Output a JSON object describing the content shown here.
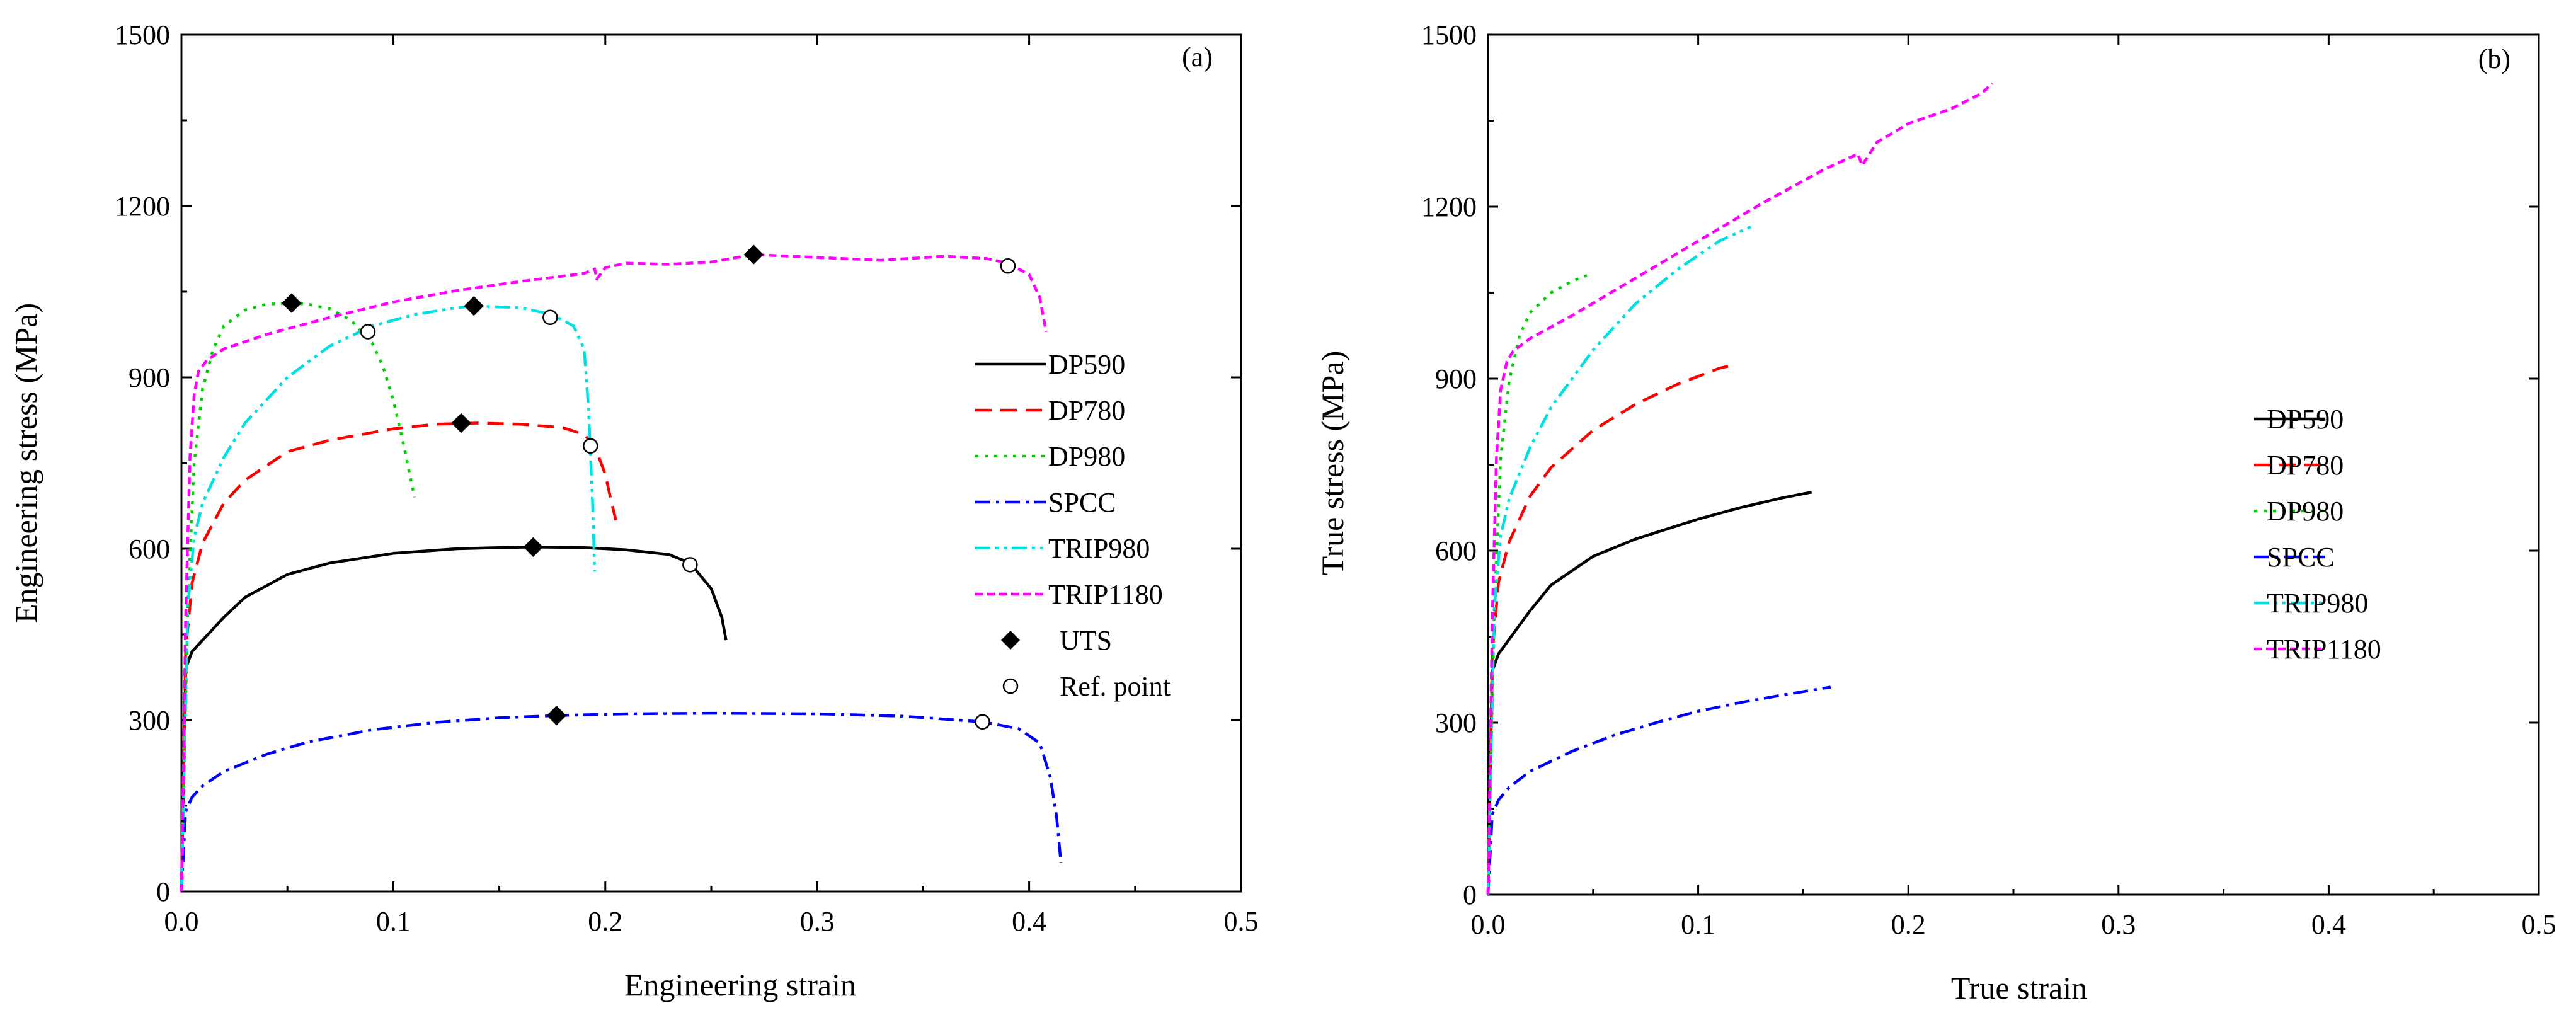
{
  "chart_data": [
    {
      "type": "line",
      "panel_label": "(a)",
      "xlabel": "Engineering strain",
      "ylabel": "Engineering stress (MPa)",
      "xlim": [
        0.0,
        0.5
      ],
      "ylim": [
        0,
        1500
      ],
      "xticks": [
        0.0,
        0.1,
        0.2,
        0.3,
        0.4,
        0.5
      ],
      "xtick_labels": [
        "0.0",
        "0.1",
        "0.2",
        "0.3",
        "0.4",
        "0.5"
      ],
      "yticks": [
        0,
        300,
        600,
        900,
        1200,
        1500
      ],
      "ytick_labels": [
        "0",
        "300",
        "600",
        "900",
        "1200",
        "1500"
      ],
      "legend_position": "right",
      "legend": [
        "DP590",
        "DP780",
        "DP980",
        "SPCC",
        "TRIP980",
        "TRIP1180",
        "UTS",
        "Ref. point"
      ],
      "series": [
        {
          "name": "DP590",
          "color": "#000000",
          "dash": "solid",
          "x": [
            0,
            0.002,
            0.005,
            0.01,
            0.02,
            0.03,
            0.05,
            0.07,
            0.1,
            0.13,
            0.15,
            0.166,
            0.19,
            0.21,
            0.23,
            0.24,
            0.25,
            0.255,
            0.257
          ],
          "y": [
            0,
            390,
            420,
            440,
            480,
            515,
            555,
            575,
            592,
            600,
            602,
            603,
            602,
            598,
            590,
            575,
            530,
            480,
            440
          ]
        },
        {
          "name": "DP780",
          "color": "#ff0000",
          "dash": "dashed",
          "x": [
            0,
            0.002,
            0.005,
            0.01,
            0.02,
            0.03,
            0.05,
            0.07,
            0.1,
            0.12,
            0.14,
            0.16,
            0.18,
            0.19,
            0.195,
            0.2,
            0.203,
            0.205
          ],
          "y": [
            0,
            420,
            540,
            610,
            680,
            720,
            770,
            790,
            810,
            818,
            820,
            818,
            812,
            800,
            780,
            730,
            680,
            650
          ]
        },
        {
          "name": "DP980",
          "color": "#00d000",
          "dash": "dotted",
          "x": [
            0,
            0.003,
            0.006,
            0.01,
            0.015,
            0.02,
            0.03,
            0.04,
            0.052,
            0.06,
            0.07,
            0.08,
            0.09,
            0.095,
            0.1,
            0.105,
            0.11
          ],
          "y": [
            0,
            500,
            750,
            880,
            950,
            990,
            1018,
            1028,
            1030,
            1028,
            1020,
            1000,
            960,
            920,
            860,
            780,
            690
          ]
        },
        {
          "name": "SPCC",
          "color": "#0000ff",
          "dash": "dashdot",
          "x": [
            0,
            0.002,
            0.005,
            0.01,
            0.02,
            0.04,
            0.06,
            0.09,
            0.12,
            0.15,
            0.177,
            0.21,
            0.25,
            0.3,
            0.34,
            0.378,
            0.395,
            0.405,
            0.41,
            0.413,
            0.415
          ],
          "y": [
            0,
            140,
            165,
            185,
            210,
            240,
            262,
            283,
            296,
            304,
            308,
            311,
            312,
            311,
            307,
            297,
            285,
            260,
            200,
            130,
            50
          ]
        },
        {
          "name": "TRIP980",
          "color": "#00e0e0",
          "dash": "dashdotdot",
          "x": [
            0,
            0.003,
            0.006,
            0.01,
            0.02,
            0.03,
            0.05,
            0.07,
            0.09,
            0.11,
            0.13,
            0.138,
            0.16,
            0.175,
            0.185,
            0.19,
            0.192,
            0.194,
            0.195
          ],
          "y": [
            0,
            500,
            620,
            680,
            760,
            820,
            900,
            955,
            990,
            1010,
            1022,
            1025,
            1022,
            1010,
            990,
            950,
            850,
            680,
            560
          ]
        },
        {
          "name": "TRIP1180",
          "color": "#ff00ff",
          "dash": "shortdash",
          "x": [
            0,
            0.002,
            0.004,
            0.006,
            0.008,
            0.012,
            0.02,
            0.04,
            0.07,
            0.1,
            0.13,
            0.16,
            0.19,
            0.195,
            0.196,
            0.2,
            0.21,
            0.23,
            0.25,
            0.27,
            0.3,
            0.33,
            0.36,
            0.38,
            0.39,
            0.4,
            0.405,
            0.408
          ],
          "y": [
            0,
            480,
            760,
            870,
            910,
            930,
            950,
            975,
            1005,
            1032,
            1052,
            1068,
            1082,
            1090,
            1072,
            1092,
            1100,
            1098,
            1102,
            1115,
            1110,
            1105,
            1112,
            1108,
            1100,
            1080,
            1040,
            980
          ]
        }
      ],
      "markers": [
        {
          "name": "UTS",
          "symbol": "filled-diamond",
          "points": [
            {
              "series": "DP980",
              "x": 0.052,
              "y": 1030
            },
            {
              "series": "TRIP980",
              "x": 0.138,
              "y": 1025
            },
            {
              "series": "TRIP1180",
              "x": 0.27,
              "y": 1115
            },
            {
              "series": "DP780",
              "x": 0.132,
              "y": 820
            },
            {
              "series": "DP590",
              "x": 0.166,
              "y": 603
            },
            {
              "series": "SPCC",
              "x": 0.177,
              "y": 308
            }
          ]
        },
        {
          "name": "Ref. point",
          "symbol": "open-circle",
          "points": [
            {
              "series": "TRIP1180",
              "x": 0.39,
              "y": 1095
            },
            {
              "series": "DP980",
              "x": 0.088,
              "y": 980
            },
            {
              "series": "TRIP980",
              "x": 0.174,
              "y": 1005
            },
            {
              "series": "DP780",
              "x": 0.193,
              "y": 780
            },
            {
              "series": "DP590",
              "x": 0.24,
              "y": 572
            },
            {
              "series": "SPCC",
              "x": 0.378,
              "y": 297
            }
          ]
        }
      ]
    },
    {
      "type": "line",
      "panel_label": "(b)",
      "xlabel": "True strain",
      "ylabel": "True stress (MPa)",
      "xlim": [
        0.0,
        0.5
      ],
      "ylim": [
        0,
        1500
      ],
      "xticks": [
        0.0,
        0.1,
        0.2,
        0.3,
        0.4,
        0.5
      ],
      "xtick_labels": [
        "0.0",
        "0.1",
        "0.2",
        "0.3",
        "0.4",
        "0.5"
      ],
      "yticks": [
        0,
        300,
        600,
        900,
        1200,
        1500
      ],
      "ytick_labels": [
        "0",
        "300",
        "600",
        "900",
        "1200",
        "1500"
      ],
      "legend_position": "right",
      "legend": [
        "DP590",
        "DP780",
        "DP980",
        "SPCC",
        "TRIP980",
        "TRIP1180"
      ],
      "series": [
        {
          "name": "DP590",
          "color": "#000000",
          "dash": "solid",
          "x": [
            0,
            0.002,
            0.005,
            0.01,
            0.02,
            0.03,
            0.05,
            0.07,
            0.1,
            0.12,
            0.14,
            0.154
          ],
          "y": [
            0,
            390,
            420,
            445,
            495,
            540,
            590,
            620,
            655,
            675,
            692,
            702
          ]
        },
        {
          "name": "DP780",
          "color": "#ff0000",
          "dash": "dashed",
          "x": [
            0,
            0.002,
            0.005,
            0.01,
            0.02,
            0.03,
            0.05,
            0.07,
            0.09,
            0.11,
            0.118
          ],
          "y": [
            0,
            420,
            545,
            615,
            695,
            745,
            810,
            855,
            890,
            918,
            925
          ]
        },
        {
          "name": "DP980",
          "color": "#00d000",
          "dash": "dotted",
          "x": [
            0,
            0.003,
            0.006,
            0.01,
            0.015,
            0.02,
            0.03,
            0.04,
            0.047
          ],
          "y": [
            0,
            500,
            760,
            895,
            975,
            1015,
            1050,
            1070,
            1080
          ]
        },
        {
          "name": "SPCC",
          "color": "#0000ff",
          "dash": "dashdot",
          "x": [
            0,
            0.002,
            0.005,
            0.01,
            0.02,
            0.04,
            0.06,
            0.08,
            0.1,
            0.12,
            0.14,
            0.163
          ],
          "y": [
            0,
            140,
            165,
            187,
            215,
            250,
            278,
            300,
            320,
            335,
            348,
            362
          ]
        },
        {
          "name": "TRIP980",
          "color": "#00e0e0",
          "dash": "dashdotdot",
          "x": [
            0,
            0.003,
            0.006,
            0.01,
            0.02,
            0.03,
            0.05,
            0.07,
            0.09,
            0.11,
            0.125
          ],
          "y": [
            0,
            500,
            625,
            690,
            780,
            850,
            950,
            1030,
            1090,
            1140,
            1165
          ]
        },
        {
          "name": "TRIP1180",
          "color": "#ff00ff",
          "dash": "shortdash",
          "x": [
            0,
            0.002,
            0.004,
            0.006,
            0.009,
            0.012,
            0.02,
            0.04,
            0.07,
            0.1,
            0.13,
            0.16,
            0.176,
            0.178,
            0.185,
            0.2,
            0.22,
            0.235,
            0.24
          ],
          "y": [
            0,
            480,
            760,
            880,
            930,
            948,
            970,
            1010,
            1075,
            1140,
            1205,
            1265,
            1292,
            1272,
            1312,
            1345,
            1370,
            1398,
            1415
          ]
        }
      ]
    }
  ]
}
